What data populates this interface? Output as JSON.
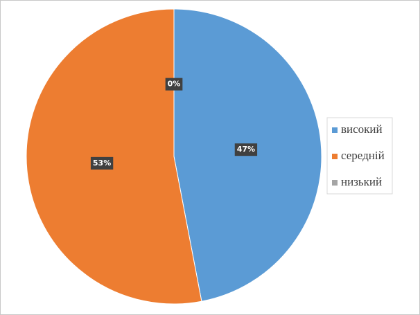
{
  "chart_data": {
    "type": "pie",
    "categories": [
      "високий",
      "середній",
      "низький"
    ],
    "values": [
      47,
      53,
      0
    ],
    "value_labels": [
      "47%",
      "53%",
      "0%"
    ],
    "colors": [
      "#5b9bd5",
      "#ed7d31",
      "#a5a5a5"
    ],
    "legend": "right"
  }
}
